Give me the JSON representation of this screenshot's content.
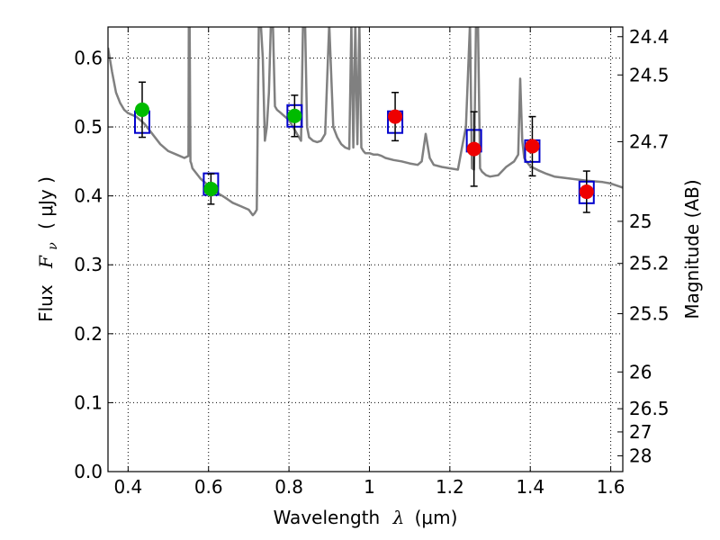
{
  "chart_data": {
    "type": "scatter",
    "xlabel": "Wavelength",
    "xlabel_symbol": "λ",
    "xlabel_unit": "(μm)",
    "ylabel": "Flux",
    "ylabel_symbol": "F",
    "ylabel_subscript": "ν",
    "ylabel_unit": "( μJy )",
    "y2label": "Magnitude (AB)",
    "xlim": [
      0.35,
      1.63
    ],
    "ylim": [
      0.0,
      0.645
    ],
    "grid": true,
    "x_ticks": [
      0.4,
      0.6,
      0.8,
      1.0,
      1.2,
      1.4,
      1.6
    ],
    "x_tick_labels": [
      "0.4",
      "0.6",
      "0.8",
      "1",
      "1.2",
      "1.4",
      "1.6"
    ],
    "y_ticks": [
      0.0,
      0.1,
      0.2,
      0.3,
      0.4,
      0.5,
      0.6
    ],
    "y_tick_labels": [
      "0.0",
      "0.1",
      "0.2",
      "0.3",
      "0.4",
      "0.5",
      "0.6"
    ],
    "mag_ticks": [
      {
        "label": "24.4",
        "value": 24.4
      },
      {
        "label": "24.5",
        "value": 24.5
      },
      {
        "label": "24.7",
        "value": 24.7
      },
      {
        "label": "25",
        "value": 25.0
      },
      {
        "label": "25.2",
        "value": 25.2
      },
      {
        "label": "25.5",
        "value": 25.5
      },
      {
        "label": "26",
        "value": 26.0
      },
      {
        "label": "26.5",
        "value": 26.5
      },
      {
        "label": "27",
        "value": 27.0
      },
      {
        "label": "28",
        "value": 28.0
      }
    ],
    "colors": {
      "model": "#808080",
      "optical": "#00bb00",
      "infrared": "#ee0000",
      "model_box": "#0000cc",
      "errorbar": "#000000"
    },
    "model_spectrum": {
      "x": [
        0.35,
        0.36,
        0.37,
        0.38,
        0.39,
        0.4,
        0.42,
        0.44,
        0.46,
        0.48,
        0.5,
        0.52,
        0.54,
        0.55,
        0.551,
        0.553,
        0.555,
        0.557,
        0.56,
        0.58,
        0.6,
        0.62,
        0.64,
        0.66,
        0.68,
        0.7,
        0.71,
        0.715,
        0.72,
        0.725,
        0.73,
        0.735,
        0.74,
        0.745,
        0.75,
        0.755,
        0.76,
        0.765,
        0.77,
        0.78,
        0.79,
        0.8,
        0.81,
        0.82,
        0.83,
        0.835,
        0.84,
        0.845,
        0.85,
        0.86,
        0.87,
        0.88,
        0.89,
        0.9,
        0.91,
        0.92,
        0.93,
        0.94,
        0.95,
        0.955,
        0.96,
        0.965,
        0.97,
        0.975,
        0.98,
        0.985,
        0.99,
        1.0,
        1.01,
        1.02,
        1.03,
        1.04,
        1.06,
        1.08,
        1.1,
        1.12,
        1.13,
        1.14,
        1.15,
        1.16,
        1.18,
        1.2,
        1.22,
        1.23,
        1.24,
        1.25,
        1.255,
        1.26,
        1.265,
        1.27,
        1.275,
        1.28,
        1.29,
        1.3,
        1.32,
        1.34,
        1.36,
        1.37,
        1.375,
        1.38,
        1.385,
        1.39,
        1.4,
        1.42,
        1.44,
        1.46,
        1.5,
        1.54,
        1.58,
        1.6,
        1.63
      ],
      "y": [
        0.615,
        0.58,
        0.55,
        0.535,
        0.525,
        0.52,
        0.515,
        0.505,
        0.49,
        0.475,
        0.465,
        0.46,
        0.455,
        0.458,
        0.65,
        0.65,
        0.45,
        0.447,
        0.44,
        0.425,
        0.415,
        0.405,
        0.398,
        0.39,
        0.385,
        0.38,
        0.372,
        0.375,
        0.38,
        0.65,
        0.65,
        0.6,
        0.48,
        0.5,
        0.55,
        0.65,
        0.65,
        0.53,
        0.525,
        0.52,
        0.515,
        0.51,
        0.5,
        0.49,
        0.48,
        0.65,
        0.65,
        0.5,
        0.485,
        0.48,
        0.478,
        0.48,
        0.49,
        0.65,
        0.5,
        0.485,
        0.475,
        0.47,
        0.468,
        0.65,
        0.47,
        0.65,
        0.475,
        0.65,
        0.47,
        0.465,
        0.462,
        0.462,
        0.46,
        0.46,
        0.458,
        0.455,
        0.452,
        0.45,
        0.447,
        0.445,
        0.45,
        0.49,
        0.455,
        0.445,
        0.442,
        0.44,
        0.438,
        0.47,
        0.5,
        0.65,
        0.44,
        0.438,
        0.65,
        0.65,
        0.44,
        0.435,
        0.43,
        0.428,
        0.43,
        0.442,
        0.45,
        0.46,
        0.57,
        0.48,
        0.455,
        0.45,
        0.443,
        0.437,
        0.432,
        0.428,
        0.425,
        0.422,
        0.42,
        0.418,
        0.412
      ]
    },
    "model_points": [
      {
        "x": 0.435,
        "y": 0.507
      },
      {
        "x": 0.606,
        "y": 0.417
      },
      {
        "x": 0.814,
        "y": 0.516
      },
      {
        "x": 1.064,
        "y": 0.507
      },
      {
        "x": 1.26,
        "y": 0.48
      },
      {
        "x": 1.405,
        "y": 0.465
      },
      {
        "x": 1.54,
        "y": 0.405
      }
    ],
    "observed_optical": [
      {
        "x": 0.435,
        "y": 0.525,
        "err": 0.04
      },
      {
        "x": 0.606,
        "y": 0.41,
        "err": 0.022
      },
      {
        "x": 0.814,
        "y": 0.516,
        "err": 0.03
      }
    ],
    "observed_infrared": [
      {
        "x": 1.064,
        "y": 0.515,
        "err": 0.035
      },
      {
        "x": 1.26,
        "y": 0.468,
        "err": 0.054
      },
      {
        "x": 1.405,
        "y": 0.472,
        "err": 0.043
      },
      {
        "x": 1.54,
        "y": 0.406,
        "err": 0.03
      }
    ]
  }
}
